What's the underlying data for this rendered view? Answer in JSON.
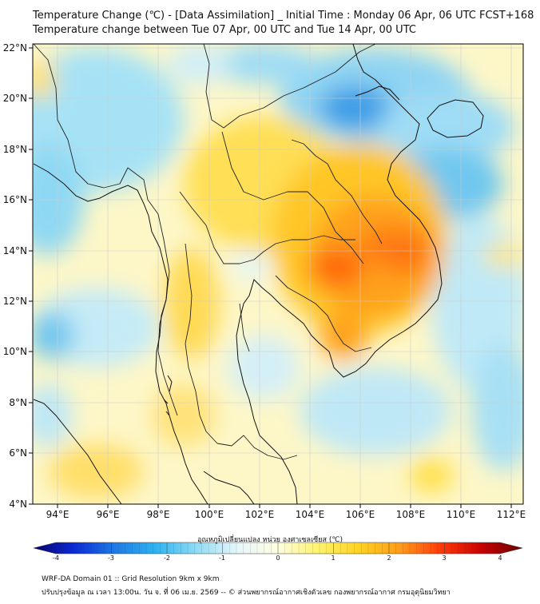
{
  "title_line1": "Temperature Change (℃) - [Data Assimilation] _ Initial Time : Monday 06 Apr, 06 UTC FCST+168",
  "title_line2": "Temperature change between Tue 07 Apr, 00 UTC and Tue 14 Apr, 00 UTC",
  "lat_labels": [
    "22°N",
    "20°N",
    "18°N",
    "16°N",
    "14°N",
    "12°N",
    "10°N",
    "8°N",
    "6°N",
    "4°N"
  ],
  "lon_labels": [
    "94°E",
    "96°E",
    "98°E",
    "100°E",
    "102°E",
    "104°E",
    "106°E",
    "108°E",
    "110°E",
    "112°E"
  ],
  "colorbar": {
    "label": "อุณหภูมิเปลี่ยนแปลง หน่วย องศาเซลเซียส (℃)",
    "min": -4,
    "max": 4,
    "ticks": [
      "-4",
      "-3",
      "-2",
      "-1",
      "0",
      "1",
      "2",
      "3",
      "4"
    ],
    "colors": [
      "#08006b",
      "#0a2bd6",
      "#1e7be6",
      "#2fb3f0",
      "#8fdcf5",
      "#e6f7fb",
      "#fffde0",
      "#fff36a",
      "#ffd21f",
      "#ff9b1a",
      "#ff3a0a",
      "#c80000",
      "#6b0000"
    ]
  },
  "footer_line1": "WRF-DA Domain 01 :: Grid Resolution 9km x 9km",
  "footer_line2": "ปรับปรุงข้อมูล ณ เวลา 13:00น. วัน จ. ที่ 06 เม.ย. 2569 -- © ส่วนพยากรณ์อากาศเชิงตัวเลข กองพยากรณ์อากาศ กรมอุตุนิยมวิทยา"
}
